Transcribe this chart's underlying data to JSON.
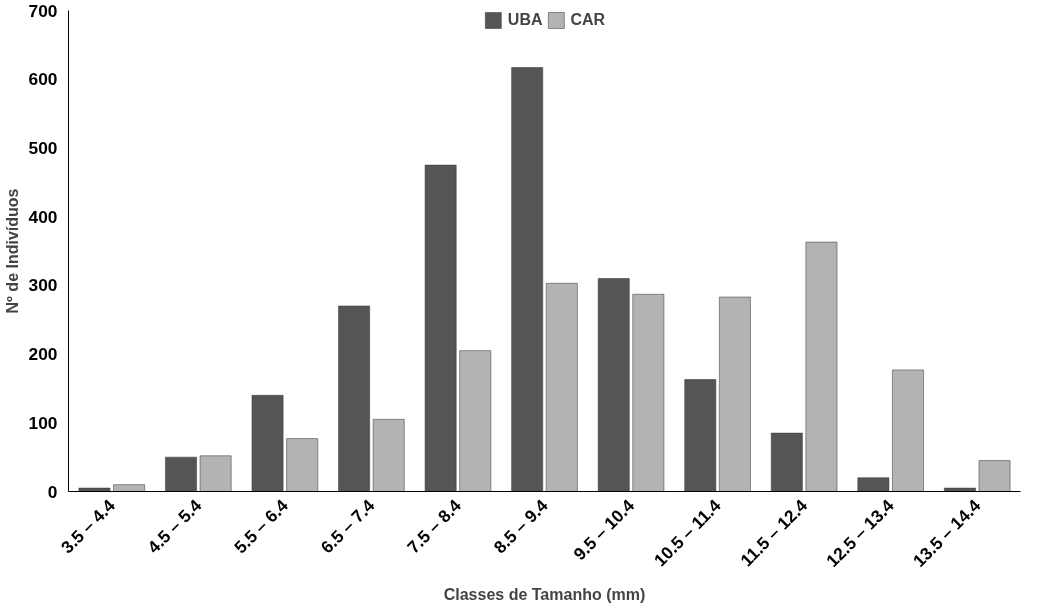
{
  "chart_data": {
    "type": "bar",
    "xlabel": "Classes de Tamanho (mm)",
    "ylabel": "Nº de Indivíduos",
    "categories": [
      "3.5 – 4.4",
      "4.5 – 5.4",
      "5.5 – 6.4",
      "6.5 – 7.4",
      "7.5 – 8.4",
      "8.5 – 9.4",
      "9.5 – 10.4",
      "10.5 – 11.4",
      "11.5 – 12.4",
      "12.5 – 13.4",
      "13.5 – 14.4"
    ],
    "series": [
      {
        "name": "UBA",
        "color": "#555555",
        "values": [
          5,
          50,
          140,
          270,
          475,
          617,
          310,
          163,
          85,
          20,
          5
        ]
      },
      {
        "name": "CAR",
        "color": "#b3b3b3",
        "values": [
          10,
          52,
          77,
          105,
          205,
          303,
          287,
          283,
          363,
          177,
          45
        ]
      }
    ],
    "ylim": [
      0,
      700
    ],
    "yticks": [
      0,
      100,
      200,
      300,
      400,
      500,
      600,
      700
    ],
    "grid": false,
    "legend": "top"
  }
}
